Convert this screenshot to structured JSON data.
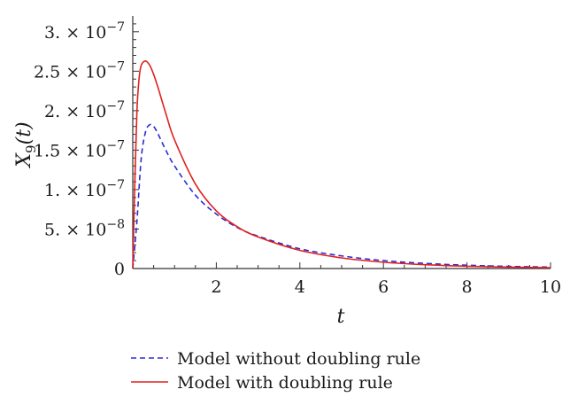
{
  "chart_data": {
    "type": "line",
    "xlabel": "t",
    "ylabel": {
      "base": "X",
      "sub": "9",
      "suffix": "(t)"
    },
    "xlim": [
      0,
      10
    ],
    "ylim": [
      0,
      3.2e-07
    ],
    "xticks": [
      {
        "value": 2,
        "label": "2"
      },
      {
        "value": 4,
        "label": "4"
      },
      {
        "value": 6,
        "label": "6"
      },
      {
        "value": 8,
        "label": "8"
      },
      {
        "value": 10,
        "label": "10"
      }
    ],
    "yticks": [
      {
        "value": 0,
        "label": "0",
        "exp": ""
      },
      {
        "value": 5e-08,
        "label": "5. × 10",
        "exp": "−8"
      },
      {
        "value": 1e-07,
        "label": "1. × 10",
        "exp": "−7"
      },
      {
        "value": 1.5e-07,
        "label": "1.5 × 10",
        "exp": "−7"
      },
      {
        "value": 2e-07,
        "label": "2. × 10",
        "exp": "−7"
      },
      {
        "value": 2.5e-07,
        "label": "2.5 × 10",
        "exp": "−7"
      },
      {
        "value": 3e-07,
        "label": "3. × 10",
        "exp": "−7"
      }
    ],
    "grid": false,
    "legend_position": "bottom",
    "series": [
      {
        "name": "Model without doubling rule",
        "color": "#2b2bd0",
        "dash": true,
        "x": [
          0,
          0.1,
          0.2,
          0.3,
          0.4,
          0.5,
          0.6,
          0.8,
          1.0,
          1.5,
          2.0,
          2.5,
          3.0,
          4.0,
          5.0,
          6.0,
          7.0,
          8.0,
          9.0,
          10.0
        ],
        "y": [
          0,
          6e-08,
          1.38e-07,
          1.72e-07,
          1.82e-07,
          1.8e-07,
          1.71e-07,
          1.49e-07,
          1.3e-07,
          9.3e-08,
          6.9e-08,
          5.2e-08,
          4.1e-08,
          2.5e-08,
          1.6e-08,
          1e-08,
          6.5e-09,
          4.2e-09,
          2.7e-09,
          1.8e-09
        ]
      },
      {
        "name": "Model with doubling rule",
        "color": "#e02020",
        "dash": false,
        "x": [
          0,
          0.05,
          0.1,
          0.15,
          0.2,
          0.3,
          0.4,
          0.5,
          0.6,
          0.8,
          1.0,
          1.5,
          2.0,
          2.5,
          3.0,
          4.0,
          5.0,
          6.0,
          7.0,
          8.0,
          9.0,
          10.0
        ],
        "y": [
          0,
          1.1e-07,
          2e-07,
          2.4e-07,
          2.57e-07,
          2.63e-07,
          2.58e-07,
          2.46e-07,
          2.3e-07,
          1.95e-07,
          1.63e-07,
          1.07e-07,
          7.3e-08,
          5.3e-08,
          4e-08,
          2.3e-08,
          1.35e-08,
          8e-09,
          4.8e-09,
          2.9e-09,
          1.8e-09,
          1.1e-09
        ]
      }
    ]
  }
}
